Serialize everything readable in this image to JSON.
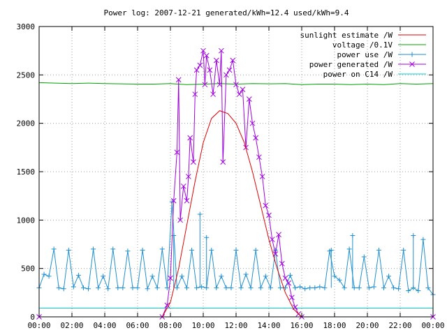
{
  "chart_data": {
    "type": "line",
    "title": "Power log: 2007-12-21 generated/kWh=12.4 used/kWh=9.4",
    "xlabel": "",
    "ylabel": "",
    "xlim": [
      0,
      24
    ],
    "ylim": [
      0,
      3000
    ],
    "x_tick_labels": [
      "00:00",
      "02:00",
      "04:00",
      "06:00",
      "08:00",
      "10:00",
      "12:00",
      "14:00",
      "16:00",
      "18:00",
      "20:00",
      "22:00",
      "00:00"
    ],
    "y_ticks": [
      0,
      500,
      1000,
      1500,
      2000,
      2500,
      3000
    ],
    "grid": true,
    "legend_position": "top-right",
    "series": [
      {
        "name": "sunlight estimate /W",
        "color": "#e00000",
        "style": "line",
        "x": [
          7.5,
          8.0,
          8.5,
          9.0,
          9.5,
          10.0,
          10.5,
          11.0,
          11.5,
          12.0,
          12.5,
          13.0,
          13.5,
          14.0,
          14.5,
          15.0,
          15.5,
          16.0
        ],
        "values": [
          0,
          150,
          500,
          950,
          1400,
          1800,
          2050,
          2130,
          2100,
          2000,
          1800,
          1500,
          1150,
          800,
          500,
          250,
          80,
          0
        ]
      },
      {
        "name": "voltage /0.1V",
        "color": "#00a000",
        "style": "line",
        "x": [
          0,
          1,
          2,
          3,
          4,
          5,
          6,
          7,
          8,
          9,
          10,
          11,
          12,
          13,
          14,
          15,
          16,
          17,
          18,
          19,
          20,
          21,
          22,
          23,
          24
        ],
        "values": [
          2420,
          2415,
          2410,
          2415,
          2410,
          2408,
          2405,
          2405,
          2410,
          2400,
          2405,
          2410,
          2405,
          2410,
          2408,
          2410,
          2400,
          2405,
          2405,
          2400,
          2405,
          2400,
          2410,
          2405,
          2410
        ]
      },
      {
        "name": "power use /W",
        "color": "#1e90d0",
        "style": "linepoints",
        "marker": "plus",
        "x": [
          0,
          0.3,
          0.6,
          0.9,
          1.2,
          1.5,
          1.8,
          2.1,
          2.4,
          2.7,
          3.0,
          3.3,
          3.6,
          3.9,
          4.2,
          4.5,
          4.8,
          5.1,
          5.4,
          5.7,
          6.0,
          6.3,
          6.6,
          6.9,
          7.2,
          7.5,
          7.8,
          8.1,
          8.4,
          8.7,
          9.0,
          9.3,
          9.6,
          9.9,
          10.2,
          10.5,
          10.8,
          11.1,
          11.4,
          11.7,
          12.0,
          12.3,
          12.6,
          12.9,
          13.2,
          13.5,
          13.8,
          14.1,
          14.4,
          14.7,
          15.0,
          15.3,
          15.6,
          15.9,
          16.2,
          16.5,
          16.8,
          17.1,
          17.4,
          17.7,
          18.0,
          18.3,
          18.6,
          18.9,
          19.2,
          19.5,
          19.8,
          20.1,
          20.4,
          20.7,
          21.0,
          21.3,
          21.6,
          21.9,
          22.2,
          22.5,
          22.8,
          23.1,
          23.4,
          23.7,
          24.0
        ],
        "values": [
          300,
          440,
          420,
          700,
          300,
          290,
          690,
          310,
          430,
          300,
          290,
          700,
          300,
          420,
          290,
          700,
          300,
          300,
          680,
          300,
          300,
          690,
          290,
          420,
          300,
          700,
          300,
          1190,
          300,
          420,
          300,
          690,
          300,
          310,
          300,
          690,
          300,
          420,
          300,
          300,
          690,
          300,
          440,
          300,
          690,
          300,
          420,
          300,
          690,
          300,
          300,
          430,
          300,
          310,
          290,
          300,
          300,
          310,
          300,
          680,
          420,
          380,
          300,
          700,
          300,
          300,
          620,
          300,
          310,
          690,
          300,
          420,
          300,
          290,
          690,
          270,
          300,
          270,
          800,
          300,
          230
        ],
        "extra_spikes": [
          {
            "x": 8.2,
            "y": 840
          },
          {
            "x": 9.8,
            "y": 1060
          },
          {
            "x": 10.2,
            "y": 820
          },
          {
            "x": 17.8,
            "y": 690
          },
          {
            "x": 19.1,
            "y": 840
          },
          {
            "x": 22.8,
            "y": 840
          }
        ]
      },
      {
        "name": "power generated /W",
        "color": "#a000e0",
        "style": "linepoints",
        "marker": "cross",
        "x": [
          0,
          7.5,
          7.8,
          8.0,
          8.2,
          8.4,
          8.5,
          8.6,
          8.8,
          9.0,
          9.1,
          9.2,
          9.4,
          9.5,
          9.6,
          9.8,
          10.0,
          10.1,
          10.2,
          10.4,
          10.6,
          10.8,
          11.0,
          11.1,
          11.2,
          11.4,
          11.6,
          11.8,
          12.0,
          12.2,
          12.4,
          12.6,
          12.8,
          13.0,
          13.2,
          13.4,
          13.6,
          13.8,
          14.0,
          14.2,
          14.4,
          14.6,
          14.8,
          15.0,
          15.2,
          15.4,
          15.6,
          15.8,
          16.0,
          24.0
        ],
        "values": [
          0,
          0,
          120,
          400,
          1200,
          1700,
          2450,
          1000,
          1350,
          1200,
          1450,
          1850,
          1600,
          2300,
          2550,
          2600,
          2750,
          2400,
          2700,
          2550,
          2300,
          2650,
          2400,
          2750,
          1600,
          2500,
          2550,
          2650,
          2400,
          2300,
          2350,
          1750,
          2250,
          2000,
          1850,
          1650,
          1450,
          1150,
          1050,
          800,
          650,
          850,
          550,
          400,
          350,
          200,
          100,
          30,
          0,
          0
        ]
      },
      {
        "name": "power on C14 /W",
        "color": "#00d0d0",
        "style": "line",
        "x": [
          0,
          24
        ],
        "values": [
          90,
          90
        ]
      }
    ]
  }
}
